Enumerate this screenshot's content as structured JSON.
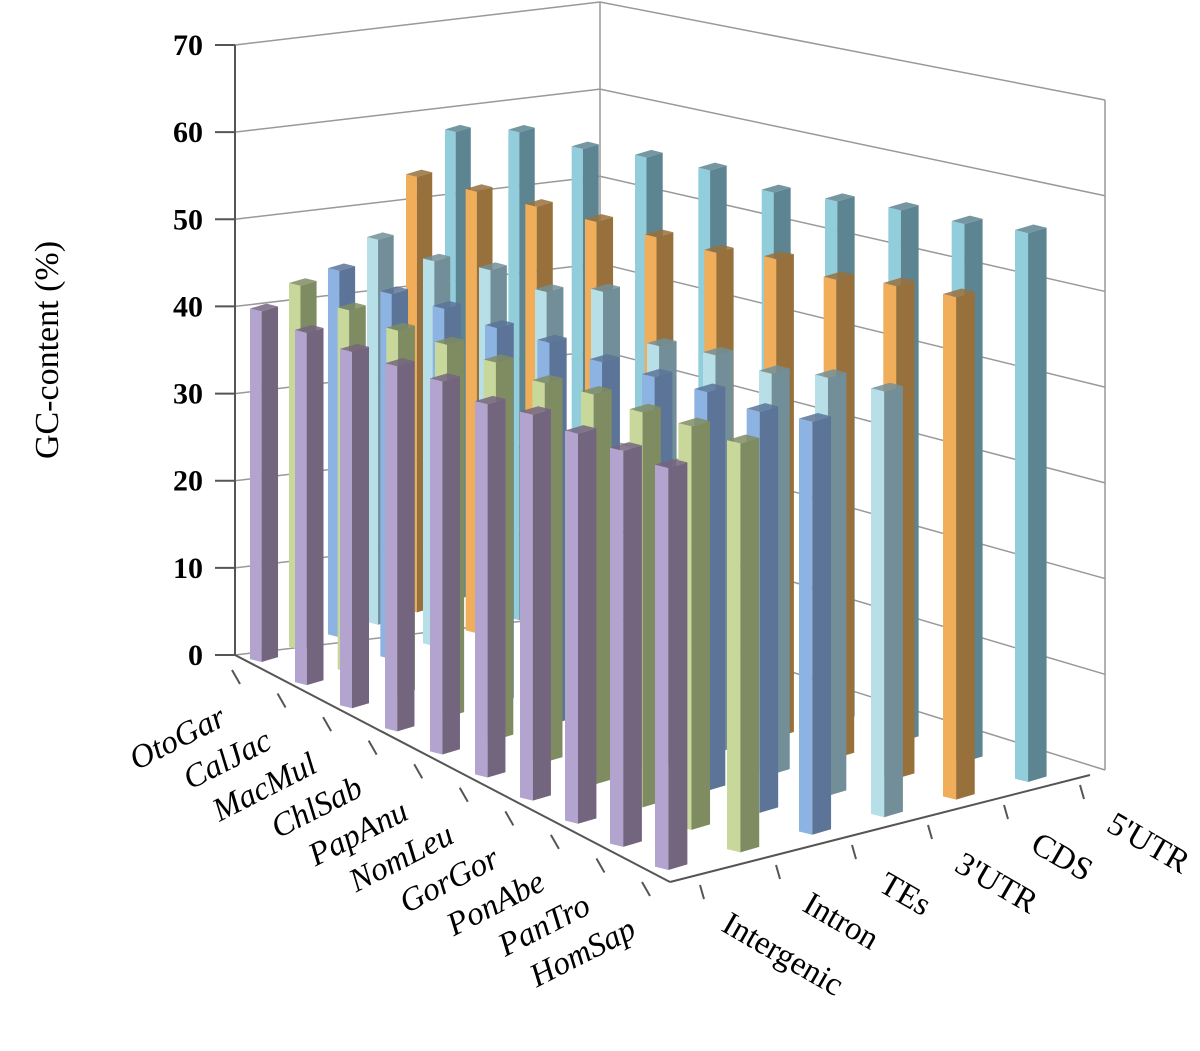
{
  "chart_data": {
    "type": "bar",
    "variant": "3d-clustered-depth",
    "title": "",
    "ylabel": "GC-content (%)",
    "ylim": [
      0,
      70
    ],
    "yticks": [
      "0",
      "10",
      "20",
      "30",
      "40",
      "50",
      "60",
      "70"
    ],
    "grid": true,
    "categories": [
      "OtoGar",
      "CalJac",
      "MacMul",
      "ChlSab",
      "PapAnu",
      "NomLeu",
      "GorGor",
      "PonAbe",
      "PanTro",
      "HomSap"
    ],
    "series": [
      {
        "name": "Intergenic",
        "color": "#b3a3cf",
        "shade": "#74657f",
        "values": [
          40.3,
          39.8,
          39.6,
          39.9,
          40.1,
          39.5,
          40.2,
          40.0,
          40.0,
          40.0
        ]
      },
      {
        "name": "Intron",
        "color": "#c8d89a",
        "shade": "#7f8c62",
        "values": [
          42.5,
          41.5,
          41.0,
          41.2,
          41.0,
          40.5,
          41.0,
          40.8,
          41.0,
          40.9
        ]
      },
      {
        "name": "TEs",
        "color": "#8db3e2",
        "shade": "#5b7498",
        "values": [
          43.5,
          42.5,
          42.5,
          42.0,
          42.0,
          41.5,
          41.5,
          41.5,
          41.0,
          41.5
        ]
      },
      {
        "name": "3'UTR",
        "color": "#b7dfe8",
        "shade": "#728f99",
        "values": [
          46.5,
          45.5,
          46.0,
          45.0,
          46.5,
          42.0,
          42.5,
          42.0,
          43.0,
          43.0
        ]
      },
      {
        "name": "CDS",
        "color": "#f0ad5a",
        "shade": "#98703c",
        "values": [
          53.5,
          53.0,
          52.5,
          52.0,
          51.5,
          51.0,
          51.5,
          50.5,
          51.0,
          51.0
        ]
      },
      {
        "name": "5'UTR",
        "color": "#92cddc",
        "shade": "#5d8591",
        "values": [
          58.5,
          59.5,
          58.5,
          58.5,
          58.0,
          56.5,
          56.5,
          56.5,
          56.0,
          56.0
        ]
      }
    ]
  }
}
